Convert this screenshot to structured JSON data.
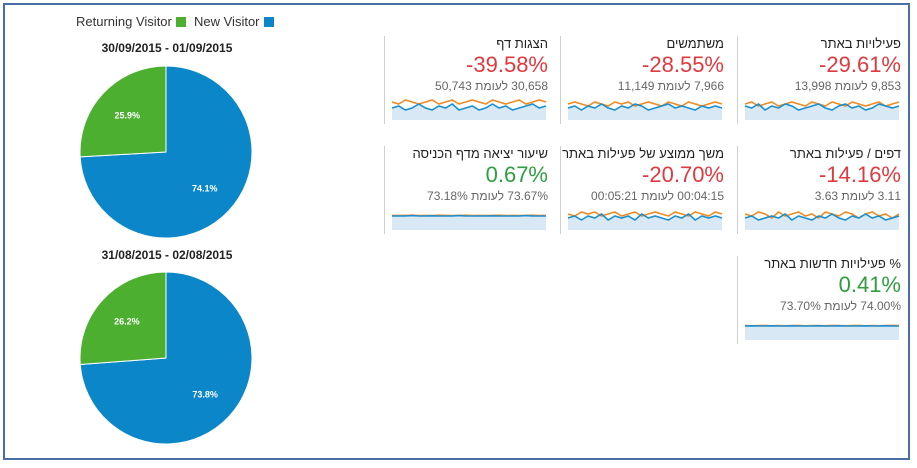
{
  "legend": {
    "returning_label": "Returning Visitor",
    "new_label": "New Visitor",
    "returning_color": "#4caf2f",
    "new_color": "#0b87c9"
  },
  "chart_data": [
    {
      "type": "pie",
      "title": "30/09/2015 - 01/09/2015",
      "categories": [
        "New Visitor",
        "Returning Visitor"
      ],
      "values": [
        74.1,
        25.9
      ],
      "labels": [
        "74.1%",
        "25.9%"
      ],
      "colors": [
        "#0b87c9",
        "#4caf2f"
      ]
    },
    {
      "type": "pie",
      "title": "31/08/2015 - 02/08/2015",
      "categories": [
        "New Visitor",
        "Returning Visitor"
      ],
      "values": [
        73.8,
        26.2
      ],
      "labels": [
        "73.8%",
        "26.2%"
      ],
      "colors": [
        "#0b87c9",
        "#4caf2f"
      ]
    }
  ],
  "metrics": [
    {
      "title": "פעילויות באתר",
      "change": "-29.61%",
      "comparison": "9,853 לעומת 13,998",
      "trend": "negative",
      "series_a": [
        6,
        5,
        7,
        4,
        6,
        5,
        7,
        6,
        4,
        5,
        6,
        7,
        5,
        4,
        6,
        7,
        5,
        6,
        4,
        5,
        7,
        6,
        5,
        6
      ],
      "series_b": [
        7,
        8,
        6,
        7,
        8,
        6,
        7,
        8,
        7,
        6,
        8,
        7,
        6,
        8,
        7,
        6,
        8,
        7,
        6,
        7,
        8,
        6,
        7,
        8
      ]
    },
    {
      "title": "משתמשים",
      "change": "-28.55%",
      "comparison": "7,966 לעומת 11,149",
      "trend": "negative",
      "series_a": [
        5,
        6,
        4,
        6,
        5,
        7,
        5,
        4,
        6,
        5,
        7,
        6,
        4,
        5,
        6,
        7,
        5,
        6,
        5,
        4,
        6,
        5,
        6,
        5
      ],
      "series_b": [
        7,
        8,
        7,
        6,
        8,
        7,
        6,
        8,
        7,
        8,
        6,
        7,
        8,
        7,
        6,
        8,
        7,
        6,
        8,
        7,
        6,
        7,
        8,
        7
      ]
    },
    {
      "title": "הצגות דף",
      "change": "-39.58%",
      "comparison": "30,658 לעומת 50,743",
      "trend": "negative",
      "series_a": [
        5,
        6,
        4,
        5,
        7,
        5,
        4,
        6,
        5,
        7,
        4,
        5,
        6,
        4,
        5,
        7,
        5,
        6,
        4,
        5,
        6,
        7,
        5,
        6
      ],
      "series_b": [
        8,
        7,
        9,
        8,
        7,
        8,
        9,
        7,
        8,
        9,
        7,
        8,
        9,
        8,
        7,
        9,
        8,
        7,
        8,
        9,
        7,
        8,
        9,
        8
      ]
    },
    {
      "title": "דפים / פעילות באתר",
      "change": "-14.16%",
      "comparison": "3.11 לעומת 3.63",
      "trend": "negative",
      "series_a": [
        5,
        6,
        4,
        5,
        6,
        5,
        7,
        4,
        6,
        5,
        4,
        6,
        5,
        7,
        5,
        4,
        6,
        5,
        7,
        5,
        6,
        4,
        5,
        6
      ],
      "series_b": [
        7,
        6,
        8,
        7,
        5,
        8,
        6,
        7,
        8,
        6,
        7,
        5,
        8,
        7,
        6,
        8,
        7,
        5,
        7,
        8,
        6,
        7,
        5,
        7
      ]
    },
    {
      "title": "משך ממוצע של פעילות באתר",
      "change": "-20.70%",
      "comparison": "00:04:15 לעומת 00:05:21",
      "trend": "negative",
      "series_a": [
        5,
        6,
        4,
        6,
        5,
        7,
        4,
        6,
        5,
        6,
        4,
        7,
        5,
        6,
        5,
        4,
        6,
        5,
        7,
        4,
        6,
        5,
        6,
        5
      ],
      "series_b": [
        7,
        6,
        8,
        7,
        8,
        6,
        7,
        8,
        6,
        7,
        8,
        6,
        7,
        8,
        7,
        6,
        8,
        7,
        6,
        8,
        7,
        6,
        8,
        7
      ]
    },
    {
      "title": "שיעור יציאה מדף הכניסה",
      "change": "0.67%",
      "comparison": "73.67% לעומת 73.18%",
      "trend": "positive",
      "series_a": [
        6,
        6,
        6,
        6.2,
        6,
        6,
        6.1,
        6,
        6,
        6,
        6.2,
        6,
        6,
        6,
        6,
        6.1,
        6,
        6,
        6,
        6,
        6.2,
        6,
        6,
        6
      ],
      "series_b": [
        6.3,
        6.2,
        6.3,
        6.4,
        6.2,
        6.3,
        6.2,
        6.4,
        6.3,
        6.2,
        6.3,
        6.4,
        6.2,
        6.3,
        6.2,
        6.3,
        6.4,
        6.2,
        6.3,
        6.2,
        6.3,
        6.4,
        6.2,
        6.3
      ]
    },
    {
      "title": "% פעילויות חדשות באתר",
      "change": "0.41%",
      "comparison": "74.00% לעומת 73.70%",
      "trend": "positive",
      "series_a": [
        6,
        6.1,
        6,
        6,
        6.1,
        6,
        6,
        6.1,
        6,
        6,
        6,
        6.1,
        6,
        6,
        6.1,
        6,
        6,
        6,
        6.1,
        6,
        6,
        6.1,
        6,
        6
      ],
      "series_b": [
        6.2,
        6.1,
        6.2,
        6.3,
        6.1,
        6.2,
        6.1,
        6.2,
        6.3,
        6.1,
        6.2,
        6.2,
        6.1,
        6.3,
        6.2,
        6.1,
        6.2,
        6.3,
        6.1,
        6.2,
        6.1,
        6.2,
        6.3,
        6.2
      ]
    }
  ],
  "colors": {
    "negative": "#e0393e",
    "positive": "#2e9e3f",
    "spark_blue": "#1a8fd0",
    "spark_orange": "#f08a24",
    "spark_fill": "#d8e9f5"
  }
}
